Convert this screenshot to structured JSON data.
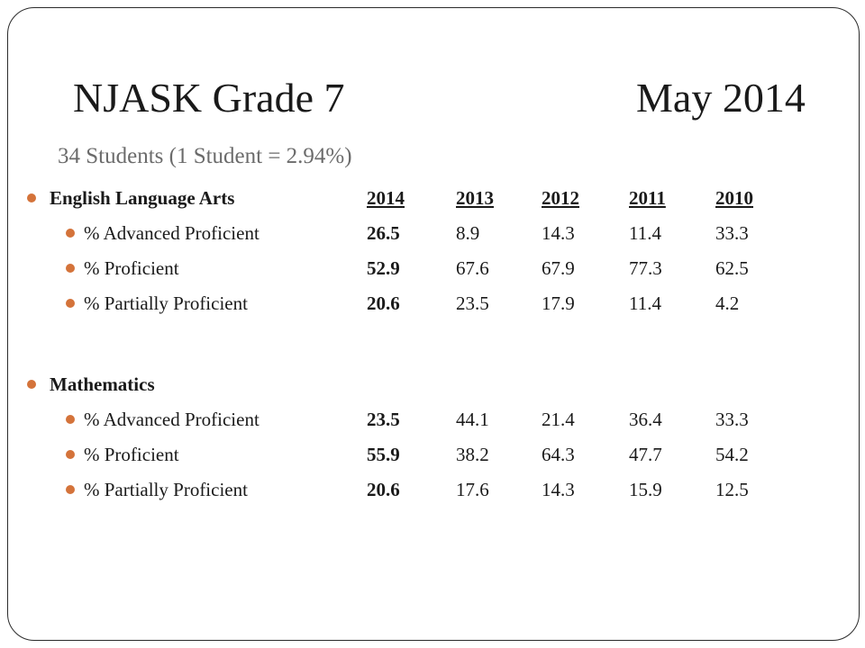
{
  "title": {
    "left": "NJASK Grade 7",
    "right": "May 2014"
  },
  "subtitle": "34 Students (1 Student = 2.94%)",
  "sections": [
    {
      "heading": "English Language Arts",
      "years": [
        "2014",
        "2013",
        "2012",
        "2011",
        "2010"
      ],
      "rows": [
        {
          "label": "% Advanced Proficient",
          "values": [
            "26.5",
            "8.9",
            "14.3",
            "11.4",
            "33.3"
          ]
        },
        {
          "label": "% Proficient",
          "values": [
            "52.9",
            "67.6",
            "67.9",
            "77.3",
            "62.5"
          ]
        },
        {
          "label": "% Partially Proficient",
          "values": [
            "20.6",
            "23.5",
            "17.9",
            "11.4",
            "4.2"
          ]
        }
      ]
    },
    {
      "heading": "Mathematics",
      "rows": [
        {
          "label": "% Advanced Proficient",
          "values": [
            "23.5",
            "44.1",
            "21.4",
            "36.4",
            "33.3"
          ]
        },
        {
          "label": "% Proficient",
          "values": [
            "55.9",
            "38.2",
            "64.3",
            "47.7",
            "54.2"
          ]
        },
        {
          "label": "% Partially Proficient",
          "values": [
            "20.6",
            "17.6",
            "14.3",
            "15.9",
            "12.5"
          ]
        }
      ]
    }
  ],
  "colors": {
    "bullet": "#d4733a",
    "subtitle": "#6b6b6b",
    "border": "#2b2b2b"
  }
}
